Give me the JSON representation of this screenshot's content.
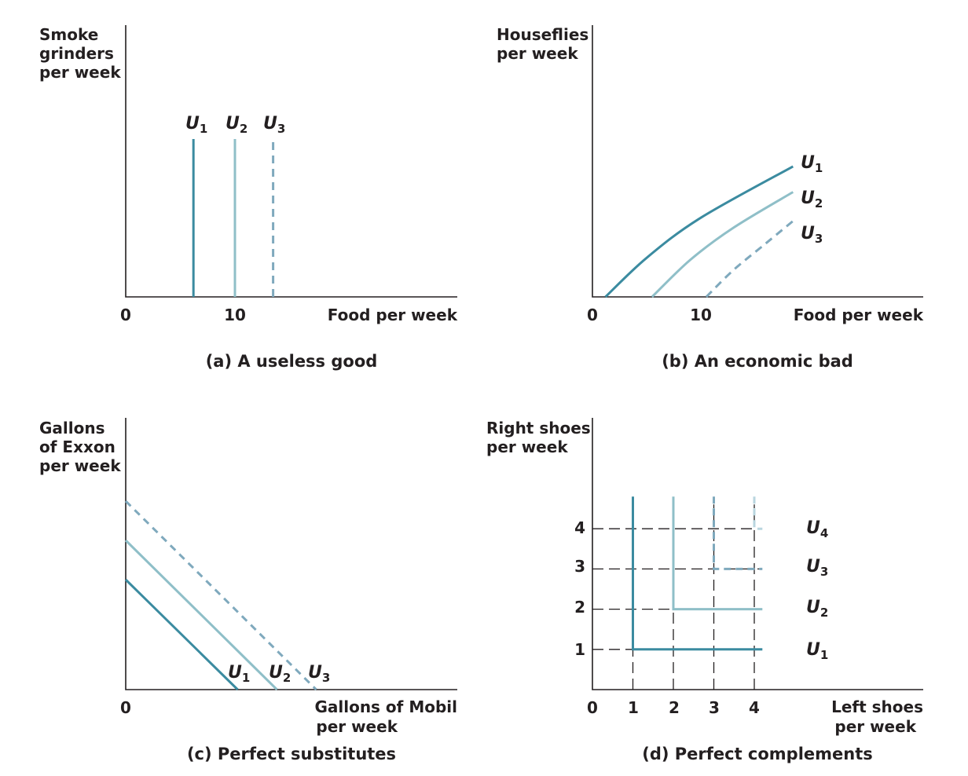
{
  "colors": {
    "u1": "#3b8ba0",
    "u2": "#8fbfc8",
    "u3": "#7fa9bd",
    "u4": "#b9d6df",
    "text": "#231f20"
  },
  "chart_data": [
    {
      "type": "line",
      "title": "(a) A useless good",
      "xlabel": "Food per week",
      "ylabel": [
        "Smoke",
        "grinders",
        "per week"
      ],
      "x_ticks": [
        "0",
        "10"
      ],
      "series": [
        {
          "name": "U1",
          "sub": "1",
          "points": [
            [
              6.2,
              0
            ],
            [
              6.2,
              10
            ]
          ],
          "style": "solid"
        },
        {
          "name": "U2",
          "sub": "2",
          "points": [
            [
              10,
              0
            ],
            [
              10,
              10
            ]
          ],
          "style": "solid"
        },
        {
          "name": "U3",
          "sub": "3",
          "points": [
            [
              13.5,
              0
            ],
            [
              13.5,
              10
            ]
          ],
          "style": "dashed"
        }
      ]
    },
    {
      "type": "line",
      "title": "(b) An economic bad",
      "xlabel": "Food per week",
      "ylabel": [
        "Houseflies",
        "per week"
      ],
      "x_ticks": [
        "0",
        "10"
      ],
      "series": [
        {
          "name": "U1",
          "sub": "1",
          "points": [
            [
              1.2,
              0
            ],
            [
              5,
              3.5
            ],
            [
              10,
              7.1
            ],
            [
              18.5,
              11.7
            ]
          ],
          "style": "solid"
        },
        {
          "name": "U2",
          "sub": "2",
          "points": [
            [
              5.5,
              0
            ],
            [
              9,
              3.3
            ],
            [
              13,
              6.2
            ],
            [
              18.5,
              9.4
            ]
          ],
          "style": "solid"
        },
        {
          "name": "U3",
          "sub": "3",
          "points": [
            [
              10.5,
              0
            ],
            [
              13,
              2.4
            ],
            [
              16,
              4.8
            ],
            [
              18.5,
              6.8
            ]
          ],
          "style": "dashed"
        }
      ]
    },
    {
      "type": "line",
      "title": "(c) Perfect substitutes",
      "xlabel": [
        "Gallons of Mobil",
        "per week"
      ],
      "ylabel": [
        "Gallons",
        "of Exxon",
        "per week"
      ],
      "x_ticks": [
        "0"
      ],
      "series": [
        {
          "name": "U1",
          "sub": "1",
          "points": [
            [
              0,
              5.6
            ],
            [
              5.7,
              0
            ]
          ],
          "style": "solid"
        },
        {
          "name": "U2",
          "sub": "2",
          "points": [
            [
              0,
              7.6
            ],
            [
              7.7,
              0
            ]
          ],
          "style": "solid"
        },
        {
          "name": "U3",
          "sub": "3",
          "points": [
            [
              0,
              9.6
            ],
            [
              9.7,
              0
            ]
          ],
          "style": "dashed"
        }
      ]
    },
    {
      "type": "line",
      "title": "(d) Perfect complements",
      "xlabel": [
        "Left shoes",
        "per week"
      ],
      "ylabel": [
        "Right shoes",
        "per week"
      ],
      "x_ticks": [
        "0",
        "1",
        "2",
        "3",
        "4"
      ],
      "y_ticks": [
        "1",
        "2",
        "3",
        "4"
      ],
      "grid": "dashed guides at integer values",
      "series": [
        {
          "name": "U1",
          "sub": "1",
          "points": [
            [
              1,
              4.8
            ],
            [
              1,
              1
            ],
            [
              4.2,
              1
            ]
          ],
          "style": "solid"
        },
        {
          "name": "U2",
          "sub": "2",
          "points": [
            [
              2,
              4.8
            ],
            [
              2,
              2
            ],
            [
              4.2,
              2
            ]
          ],
          "style": "solid"
        },
        {
          "name": "U3",
          "sub": "3",
          "points": [
            [
              3,
              4.8
            ],
            [
              3,
              3
            ],
            [
              4.2,
              3
            ]
          ],
          "style": "dashed"
        },
        {
          "name": "U4",
          "sub": "4",
          "points": [
            [
              4,
              4.8
            ],
            [
              4,
              4
            ],
            [
              4.2,
              4
            ]
          ],
          "style": "dashed"
        }
      ]
    }
  ]
}
